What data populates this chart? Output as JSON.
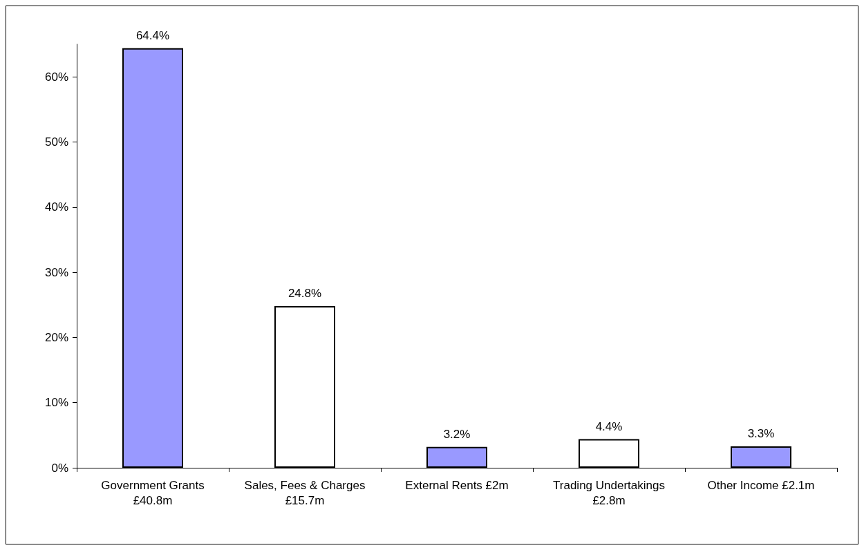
{
  "chart_data": {
    "type": "bar",
    "categories": [
      "Government Grants\n£40.8m",
      "Sales, Fees & Charges\n£15.7m",
      "External Rents £2m",
      "Trading Undertakings\n£2.8m",
      "Other Income £2.1m"
    ],
    "values": [
      64.4,
      24.8,
      3.2,
      4.4,
      3.3
    ],
    "colors": [
      "#9999ff",
      "#ffffff",
      "#9999ff",
      "#ffffff",
      "#9999ff"
    ],
    "value_labels": [
      "64.4%",
      "24.8%",
      "3.2%",
      "4.4%",
      "3.3%"
    ],
    "ylim": [
      0,
      65
    ],
    "yticks": [
      {
        "value": 0,
        "label": "0%"
      },
      {
        "value": 10,
        "label": "10%"
      },
      {
        "value": 20,
        "label": "20%"
      },
      {
        "value": 30,
        "label": "30%"
      },
      {
        "value": 40,
        "label": "40%"
      },
      {
        "value": 50,
        "label": "50%"
      },
      {
        "value": 60,
        "label": "60%"
      }
    ],
    "grid": false
  }
}
